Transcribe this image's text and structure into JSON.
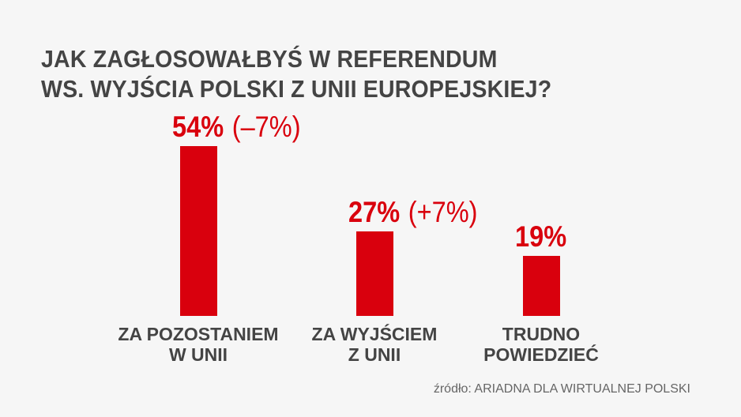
{
  "chart_data": {
    "type": "bar",
    "title": "JAK ZAGŁOSOWAŁBYŚ W REFERENDUM WS. WYJŚCIA POLSKI Z UNII EUROPEJSKIEJ?",
    "title_lines": [
      "JAK ZAGŁOSOWAŁBYŚ W REFERENDUM",
      "WS. WYJŚCIA POLSKI Z UNII EUROPEJSKIEJ?"
    ],
    "categories": [
      [
        "ZA POZOSTANIEM",
        "W UNII"
      ],
      [
        "ZA WYJŚCIEM",
        "Z UNII"
      ],
      [
        "TRUDNO",
        "POWIEDZIEĆ"
      ]
    ],
    "values": [
      54,
      27,
      19
    ],
    "value_labels": [
      "54%",
      "27%",
      "19%"
    ],
    "change_labels": [
      "(–7%)",
      "(+7%)",
      ""
    ],
    "unit": "%",
    "xlabel": "",
    "ylabel": "",
    "ylim": [
      0,
      54
    ],
    "grid": false,
    "bar_color": "#d9000d",
    "source": "źródło: ARIADNA DLA WIRTUALNEJ POLSKI"
  }
}
